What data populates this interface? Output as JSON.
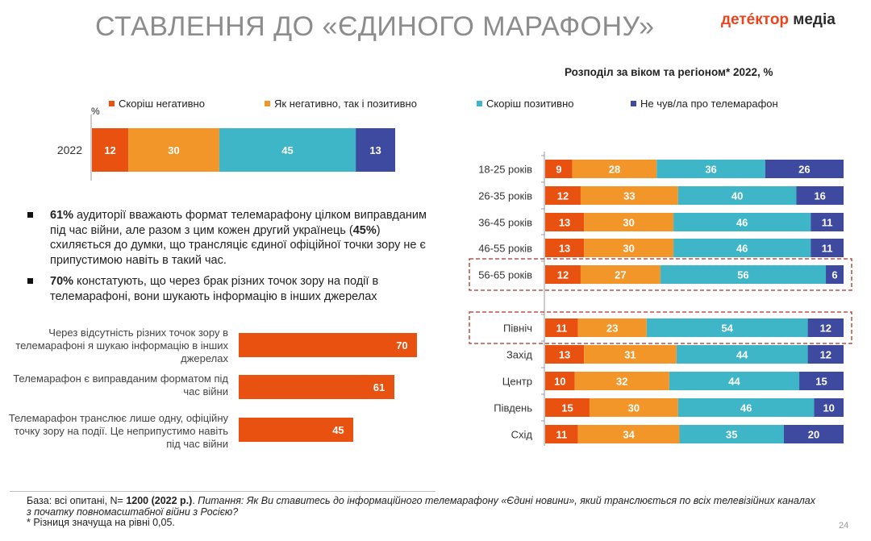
{
  "header": {
    "title": "СТАВЛЕННЯ ДО «ЄДИНОГО МАРАФОНУ»",
    "logo_part1": "детéктор",
    "logo_part2": " медіа",
    "subtitle": "Розподіл за віком та регіоном* 2022, %"
  },
  "legend": [
    {
      "label": "Скоріш негативно",
      "color": "#e8510f"
    },
    {
      "label": "Як негативно, так і позитивно",
      "color": "#f3962a"
    },
    {
      "label": "Скоріш позитивно",
      "color": "#3eb6c8"
    },
    {
      "label": "Не чув/ла про телемарафон",
      "color": "#3d4aa0"
    }
  ],
  "pct_unit": "%",
  "bullets": [
    {
      "bold": "61%",
      "text1": " аудиторії вважають формат телемарафону цілком виправданим під час війни, але разом з цим кожен другий українець (",
      "bold2": "45%",
      "text2": ") схиляється до думки, що трансляціє єдиної офіційної точки зору не є припустимою навіть в такий час."
    },
    {
      "bold": "70%",
      "text1": " констатують, що через брак різних точок зору на події в телемарафоні, вони шукають інформацію в інших джерелах",
      "bold2": "",
      "text2": ""
    }
  ],
  "footer": {
    "base_prefix": "База: всі опитані, N= ",
    "base_bold": "1200 (2022 р.)",
    "base_suffix": ". ",
    "question": "Питання: Як Ви ставитесь до інформаційного телемарафону «Єдині новини», який транслюється по всіх телевізійних каналах з початку повномасштабної війни з Росією?",
    "note": "* Різниця значуща на рівні 0,05."
  },
  "page_number": "24",
  "chart_data": [
    {
      "type": "bar",
      "stacked": true,
      "orientation": "horizontal",
      "categories": [
        "2022"
      ],
      "series": [
        {
          "name": "Скоріш негативно",
          "values": [
            12
          ]
        },
        {
          "name": "Як негативно, так і позитивно",
          "values": [
            30
          ]
        },
        {
          "name": "Скоріш позитивно",
          "values": [
            45
          ]
        },
        {
          "name": "Не чув/ла про телемарафон",
          "values": [
            13
          ]
        }
      ]
    },
    {
      "type": "bar",
      "orientation": "horizontal",
      "categories": [
        "Через відсутність різних точок зору в телемарафоні я шукаю інформацію в інших джерелах",
        "Телемарафон є виправданим форматом під час війни",
        "Телемарафон транслює лише одну, офіційну точку зору на події. Це неприпустимо навіть під час війни"
      ],
      "values": [
        70,
        61,
        45
      ],
      "xlim": [
        0,
        100
      ]
    },
    {
      "type": "bar",
      "stacked": true,
      "orientation": "horizontal",
      "title": "Розподіл за віком та регіоном* 2022, %",
      "categories": [
        "18-25 років",
        "26-35 років",
        "36-45 років",
        "46-55 років",
        "56-65 років",
        "Північ",
        "Захід",
        "Центр",
        "Південь",
        "Схід"
      ],
      "highlighted": [
        "56-65 років",
        "Північ"
      ],
      "series": [
        {
          "name": "Скоріш негативно",
          "values": [
            9,
            12,
            13,
            13,
            12,
            11,
            13,
            10,
            15,
            11
          ]
        },
        {
          "name": "Як негативно, так і позитивно",
          "values": [
            28,
            33,
            30,
            30,
            27,
            23,
            31,
            32,
            30,
            34
          ]
        },
        {
          "name": "Скоріш позитивно",
          "values": [
            36,
            40,
            46,
            46,
            56,
            54,
            44,
            44,
            46,
            35
          ]
        },
        {
          "name": "Не чув/ла про телемарафон",
          "values": [
            26,
            16,
            11,
            11,
            6,
            12,
            12,
            15,
            10,
            20
          ]
        }
      ]
    }
  ]
}
